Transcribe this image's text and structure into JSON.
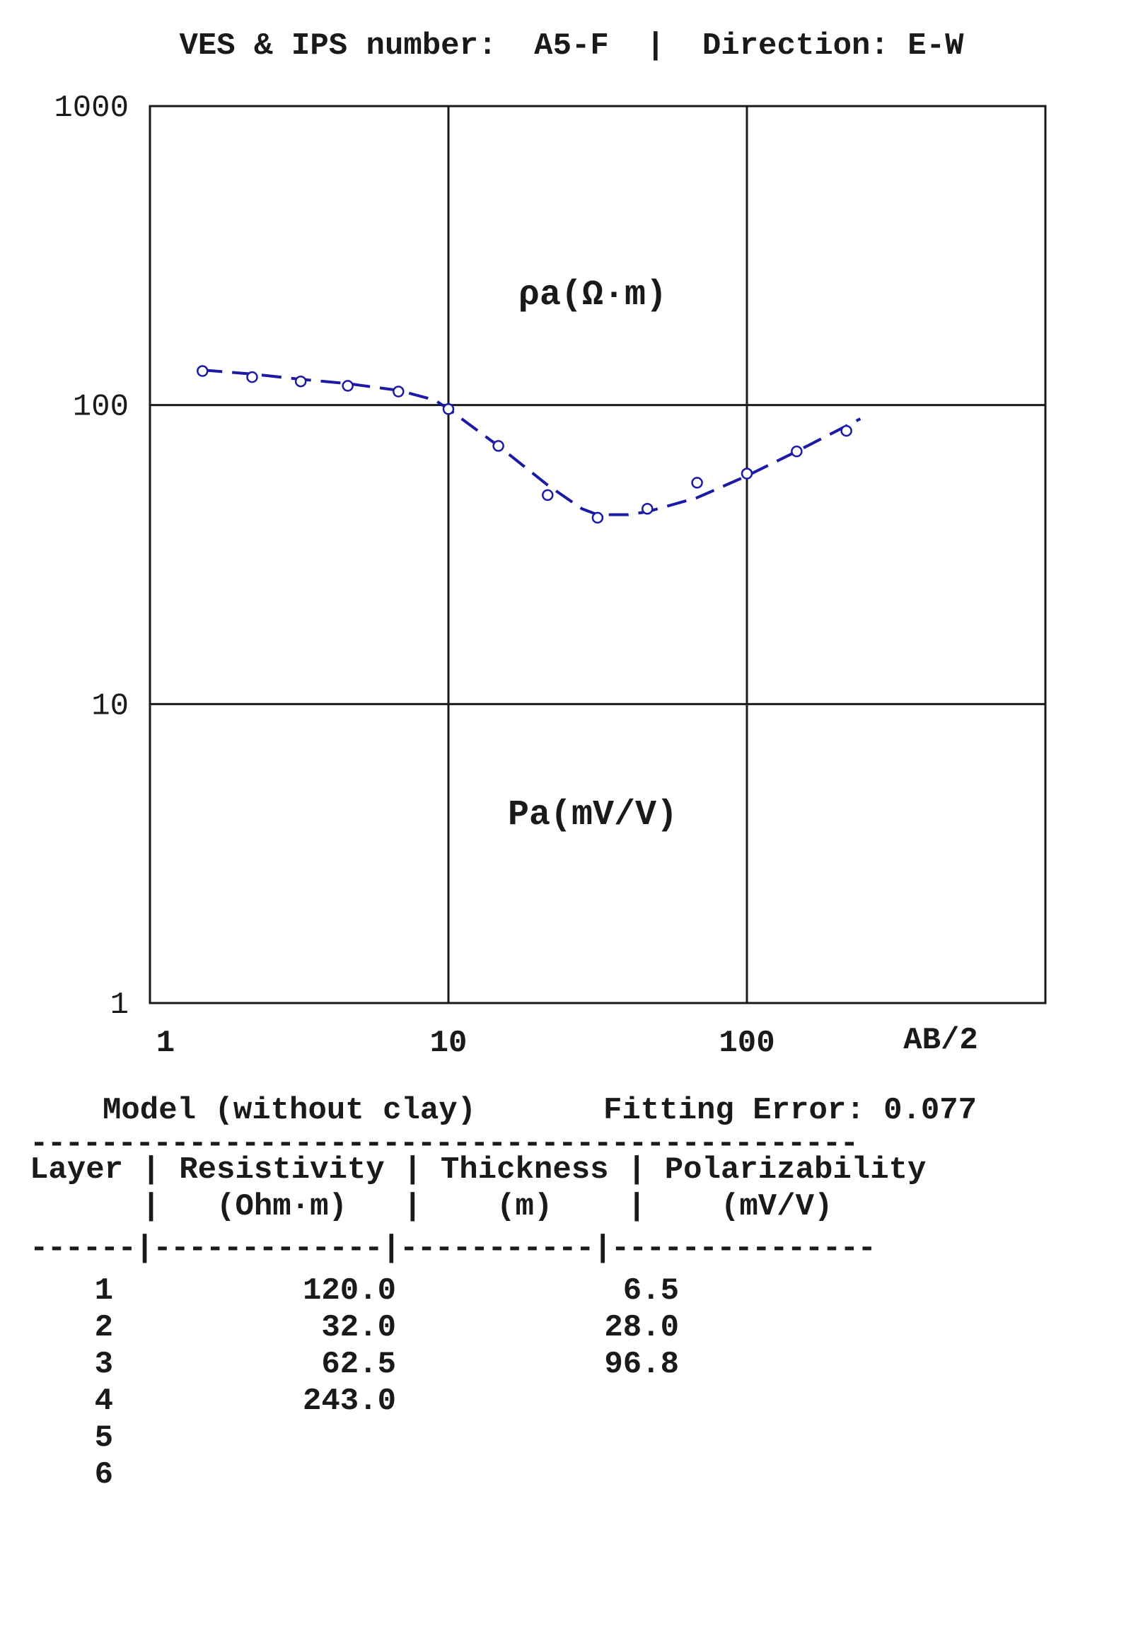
{
  "header": {
    "title": "VES & IPS number:  A5-F  |  Direction: E-W"
  },
  "colors": {
    "series": "#1a1aa6",
    "axis": "#1a1a1a"
  },
  "chart_data": {
    "type": "line",
    "x_scale": "log",
    "y_scale": "log",
    "xlim": [
      1,
      1000
    ],
    "ylim": [
      1,
      1000
    ],
    "x_tick_labels": [
      "1",
      "10",
      "100"
    ],
    "y_tick_labels": [
      "1000",
      "100",
      "10",
      "1"
    ],
    "xlabel": "AB/2",
    "annotations": [
      "ρa(Ω·m)",
      "Pa(mV/V)"
    ],
    "grid": true,
    "series": [
      {
        "style": "markers",
        "x": [
          1.5,
          2.2,
          3.2,
          4.6,
          6.8,
          10,
          14.7,
          21.5,
          31.6,
          46.4,
          68.1,
          100,
          146.8,
          215.4
        ],
        "y": [
          130,
          124,
          120,
          116,
          111,
          97,
          73,
          50,
          42,
          45,
          55,
          59,
          70,
          82
        ]
      },
      {
        "style": "dashed-line",
        "x": [
          1.5,
          2.2,
          3.2,
          4.6,
          6.8,
          9,
          10,
          14.7,
          21.5,
          28,
          31.6,
          40,
          46.4,
          68.1,
          100,
          146.8,
          240
        ],
        "y": [
          131,
          127,
          122,
          118,
          112,
          104,
          97,
          73,
          54,
          45,
          43,
          43,
          44,
          49,
          58,
          70,
          90
        ]
      }
    ]
  },
  "summary": {
    "model_label": "Model (without clay)",
    "fitting_label": "Fitting Error: 0.077"
  },
  "table": {
    "rule_top": "-----------------------------------------------",
    "header_line1": "Layer | Resistivity | Thickness | Polarizability",
    "header_line2": "      |   (Ohm·m)   |    (m)    |    (mV/V)",
    "rule_mid": "------|-------------|-----------|---------------",
    "rows": [
      {
        "layer": "1",
        "resistivity": "120.0",
        "thickness": "6.5"
      },
      {
        "layer": "2",
        "resistivity": "32.0",
        "thickness": "28.0"
      },
      {
        "layer": "3",
        "resistivity": "62.5",
        "thickness": "96.8"
      },
      {
        "layer": "4",
        "resistivity": "243.0",
        "thickness": ""
      },
      {
        "layer": "5",
        "resistivity": "",
        "thickness": ""
      },
      {
        "layer": "6",
        "resistivity": "",
        "thickness": ""
      }
    ]
  }
}
